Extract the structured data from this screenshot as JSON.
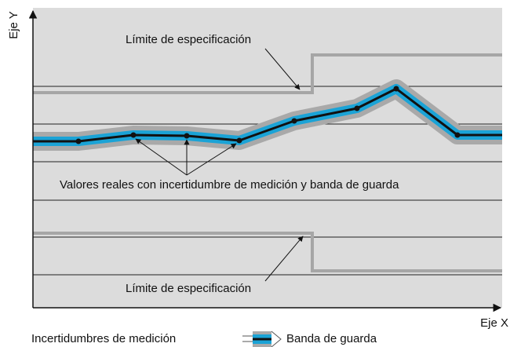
{
  "axes": {
    "y_label": "Eje Y",
    "x_label": "Eje X"
  },
  "annotations": {
    "upper_limit": "Límite de especificación",
    "lower_limit": "Límite de especificación",
    "values": "Valores reales con incertidumbre de medición y banda de guarda"
  },
  "legend": {
    "uncertainty": "Incertidumbres de medición",
    "guard_band": "Banda de guarda"
  }
}
